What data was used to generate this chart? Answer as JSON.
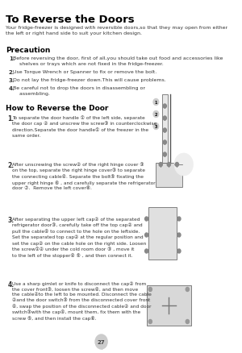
{
  "title": "To Reverse the Doors",
  "intro": "Your fridge-freezer is designed with reversible doors,so that they may open from either\nthe left or right hand side to suit your kitchen design.",
  "precaution_title": "Precaution",
  "precaution_items": [
    "Before reversing the door, first of all,you should take out food and accessories like\n    shelves or trays which are not fixed in the fridge-freezer.",
    "Use Torque Wrench or Spanner to fix or remove the bolt.",
    "Do not lay the fridge-freezer down.This will cause problems.",
    "Be careful not to drop the doors in disassembling or\n    assembling."
  ],
  "how_title": "How to Reverse the Door",
  "how_items": [
    "To separate the door handle ① of the left side, separate\nthe door cap ② and unscrew the screw③ in counterclockwise\ndirection.Separate the door handle① of the freezer in the\nsame order.",
    "After unscrewing the screw② of the right hinge cover ③\non the top, separate the right hinge cover③ to separate\nthe connecting cable④. Separate the bolt⑤ fixating the\nupper right hinge ⑥ , and carefully separate the refrigerator\ndoor ⑦.  Remove the left cover⑧.",
    "After separating the upper left cap② of the separated\nrefrigerator door③, carefully take off the top cap② and\npull the cable④ to connect to the hole on the leftside.\nSet the separated top cap② at the regular position and\nset the cap② on the cable hole on the right side. Loosen\nthe screw①② under the cold room door ③ , move it\nto the left of the stopper④ ⑤ , and then connect it.",
    "Use a sharp gimlet or knife to disconnect the cap② from\nthe cover front③, loosen the screw④, and then move\nthe cable②to the left to be mounted. Disconnect the cable\n②and the door switch③ from the disconnected cover front\n④, swap the position of the disconnected cable② and door\nswitch③with the cap④, mount them, fix them with the\nscrew ⑤, and then install the cap⑥."
  ],
  "page_number": "27",
  "bg_color": "#ffffff",
  "title_color": "#000000",
  "text_color": "#333333",
  "section_title_color": "#000000"
}
